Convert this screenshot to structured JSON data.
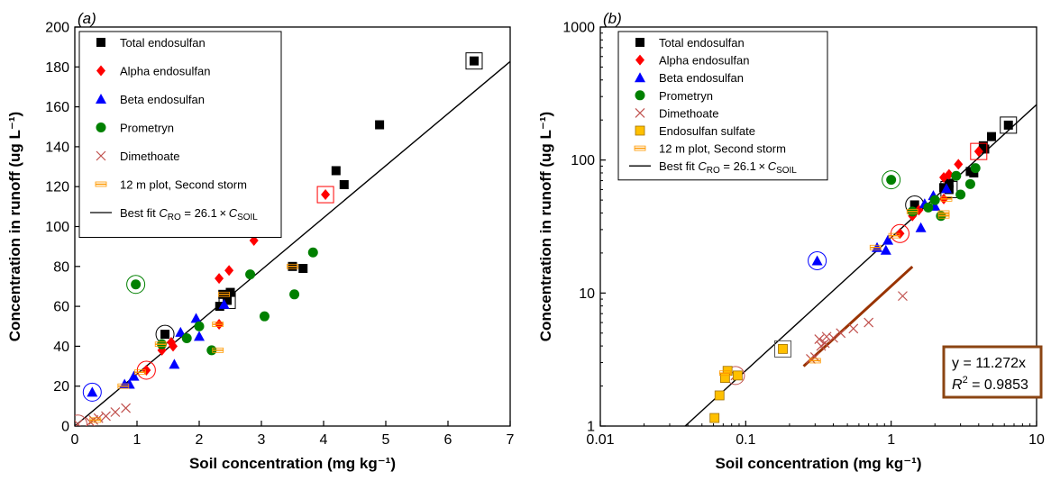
{
  "chart_data": [
    {
      "type": "scatter",
      "panel_label": "(a)",
      "xlabel": "Soil concentration (mg kg⁻¹)",
      "ylabel": "Concentration in runoff (ug L⁻¹)",
      "xlim": [
        0,
        7
      ],
      "ylim": [
        0,
        200
      ],
      "xscale": "linear",
      "yscale": "linear",
      "xticks": [
        0,
        1,
        2,
        3,
        4,
        5,
        6,
        7
      ],
      "yticks": [
        0,
        20,
        40,
        60,
        80,
        100,
        120,
        140,
        160,
        180,
        200
      ],
      "grid": false,
      "legend_position": "top-left",
      "legend": [
        {
          "label": "Total endosulfan",
          "marker": "square",
          "color": "#000000"
        },
        {
          "label": "Alpha endosulfan",
          "marker": "diamond",
          "color": "#ff0000"
        },
        {
          "label": "Beta endosulfan",
          "marker": "triangle",
          "color": "#0000ff"
        },
        {
          "label": "Prometryn",
          "marker": "circle",
          "color": "#008000"
        },
        {
          "label": "Dimethoate",
          "marker": "x",
          "color": "#c0504d"
        },
        {
          "label": "12 m plot, Second storm",
          "marker": "dash",
          "color": "#ff9900"
        },
        {
          "label": "Best fit",
          "label_math": "CRO = 26.1 × CSOIL",
          "marker": "line",
          "color": "#000000"
        }
      ],
      "fit_line": {
        "slope": 26.1
      },
      "series": [
        {
          "name": "Total endosulfan",
          "marker": "square",
          "color": "#000000",
          "points": [
            [
              6.42,
              183
            ],
            [
              4.9,
              151
            ],
            [
              4.2,
              128
            ],
            [
              4.33,
              121
            ],
            [
              3.5,
              80
            ],
            [
              3.67,
              79
            ],
            [
              2.5,
              67
            ],
            [
              2.38,
              66
            ],
            [
              2.33,
              60
            ],
            [
              2.45,
              63
            ],
            [
              1.45,
              46
            ]
          ],
          "boxed": [
            [
              6.42,
              183
            ],
            [
              2.45,
              63
            ]
          ],
          "ringed": [
            [
              1.45,
              46
            ]
          ]
        },
        {
          "name": "Alpha endosulfan",
          "marker": "diamond",
          "color": "#ff0000",
          "points": [
            [
              4.03,
              116
            ],
            [
              2.88,
              93
            ],
            [
              2.48,
              78
            ],
            [
              2.32,
              74
            ],
            [
              2.32,
              51
            ],
            [
              1.55,
              42
            ],
            [
              1.58,
              40
            ],
            [
              1.4,
              38
            ],
            [
              1.15,
              28
            ]
          ],
          "boxed": [
            [
              4.03,
              116
            ]
          ],
          "ringed": [
            [
              1.15,
              28
            ]
          ]
        },
        {
          "name": "Beta endosulfan",
          "marker": "triangle",
          "color": "#0000ff",
          "points": [
            [
              2.4,
              61
            ],
            [
              1.95,
              54
            ],
            [
              1.7,
              47
            ],
            [
              2.0,
              45
            ],
            [
              1.6,
              31
            ],
            [
              0.95,
              25
            ],
            [
              0.8,
              21
            ],
            [
              0.88,
              21
            ],
            [
              0.28,
              17
            ]
          ],
          "ringed": [
            [
              0.28,
              17
            ]
          ]
        },
        {
          "name": "Prometryn",
          "marker": "circle",
          "color": "#008000",
          "points": [
            [
              0.98,
              71
            ],
            [
              3.83,
              87
            ],
            [
              2.82,
              76
            ],
            [
              3.53,
              66
            ],
            [
              3.05,
              55
            ],
            [
              2.0,
              50
            ],
            [
              1.8,
              44
            ],
            [
              1.4,
              41
            ],
            [
              2.2,
              38
            ]
          ],
          "ringed": [
            [
              0.98,
              71
            ]
          ]
        },
        {
          "name": "Dimethoate",
          "marker": "x",
          "color": "#c0504d",
          "points": [
            [
              0.82,
              9
            ],
            [
              0.65,
              7
            ],
            [
              0.5,
              5
            ],
            [
              0.38,
              4
            ],
            [
              0.3,
              3
            ],
            [
              0.25,
              2
            ],
            [
              0.05,
              1
            ]
          ],
          "ringed": [
            [
              0.05,
              1
            ]
          ]
        },
        {
          "name": "12 m plot, Second storm",
          "marker": "dash",
          "color": "#ff9900",
          "points": [
            [
              1.38,
              41
            ],
            [
              2.3,
              38
            ],
            [
              1.05,
              27
            ],
            [
              0.78,
              20
            ],
            [
              2.3,
              51
            ],
            [
              0.33,
              3
            ],
            [
              2.4,
              66
            ],
            [
              3.5,
              80
            ]
          ]
        }
      ]
    },
    {
      "type": "scatter",
      "panel_label": "(b)",
      "xlabel": "Soil concentration (mg kg⁻¹)",
      "ylabel": "Concentration in runoff (ug L⁻¹)",
      "xlim": [
        0.01,
        10
      ],
      "ylim": [
        1,
        1000
      ],
      "xscale": "log",
      "yscale": "log",
      "xticks": [
        0.01,
        0.1,
        1,
        10
      ],
      "xticklabels": [
        "0.01",
        "0.1",
        "1",
        "10"
      ],
      "yticks": [
        1,
        10,
        100,
        1000
      ],
      "yticklabels": [
        "1",
        "10",
        "100",
        "1000"
      ],
      "grid": false,
      "legend_position": "top-left",
      "legend": [
        {
          "label": "Total endosulfan",
          "marker": "square",
          "color": "#000000"
        },
        {
          "label": "Alpha endosulfan",
          "marker": "diamond",
          "color": "#ff0000"
        },
        {
          "label": "Beta endosulfan",
          "marker": "triangle",
          "color": "#0000ff"
        },
        {
          "label": "Prometryn",
          "marker": "circle",
          "color": "#008000"
        },
        {
          "label": "Dimethoate",
          "marker": "x",
          "color": "#c0504d"
        },
        {
          "label": "Endosulfan sulfate",
          "marker": "square",
          "color": "#ffc000"
        },
        {
          "label": "12 m plot, Second storm",
          "marker": "dash",
          "color": "#ff9900"
        },
        {
          "label": "Best fit",
          "label_math": "CRO = 26.1 × CSOIL",
          "marker": "line",
          "color": "#000000"
        }
      ],
      "fit_line": {
        "slope": 26.1
      },
      "trend_line": {
        "slope": 11.272,
        "x_range": [
          0.25,
          1.4
        ],
        "color": "#993300"
      },
      "equation_box": {
        "line1": "y = 11.272x",
        "r2_label": "R",
        "r2_value": "= 0.9853",
        "border_color": "#8b4513"
      },
      "series": [
        {
          "name": "Total endosulfan",
          "marker": "square",
          "color": "#000000",
          "points": [
            [
              6.4,
              183
            ],
            [
              4.9,
              150
            ],
            [
              4.3,
              128
            ],
            [
              4.4,
              121
            ],
            [
              3.7,
              80
            ],
            [
              3.5,
              82
            ],
            [
              2.5,
              67
            ],
            [
              2.3,
              62
            ],
            [
              1.45,
              46
            ],
            [
              2.5,
              60
            ]
          ],
          "boxed": [
            [
              6.4,
              183
            ],
            [
              2.5,
              60
            ]
          ],
          "ringed": [
            [
              1.45,
              46
            ]
          ]
        },
        {
          "name": "Alpha endosulfan",
          "marker": "diamond",
          "color": "#ff0000",
          "points": [
            [
              4.0,
              116
            ],
            [
              2.9,
              93
            ],
            [
              2.5,
              78
            ],
            [
              2.3,
              74
            ],
            [
              2.3,
              51
            ],
            [
              1.55,
              42
            ],
            [
              1.4,
              38
            ],
            [
              1.15,
              28
            ]
          ],
          "boxed": [
            [
              4.0,
              116
            ]
          ],
          "ringed": [
            [
              1.15,
              28
            ]
          ]
        },
        {
          "name": "Beta endosulfan",
          "marker": "triangle",
          "color": "#0000ff",
          "points": [
            [
              2.4,
              61
            ],
            [
              1.95,
              54
            ],
            [
              1.7,
              47
            ],
            [
              2.0,
              45
            ],
            [
              1.6,
              31
            ],
            [
              0.95,
              25
            ],
            [
              0.8,
              22
            ],
            [
              0.92,
              21
            ],
            [
              0.31,
              17.5
            ]
          ],
          "ringed": [
            [
              0.31,
              17.5
            ]
          ]
        },
        {
          "name": "Prometryn",
          "marker": "circle",
          "color": "#008000",
          "points": [
            [
              1.0,
              71
            ],
            [
              3.8,
              87
            ],
            [
              2.8,
              76
            ],
            [
              3.5,
              66
            ],
            [
              3.0,
              55
            ],
            [
              2.0,
              50
            ],
            [
              1.8,
              44
            ],
            [
              1.4,
              41
            ],
            [
              2.2,
              38
            ]
          ],
          "ringed": [
            [
              1.0,
              71
            ]
          ]
        },
        {
          "name": "Dimethoate",
          "marker": "x",
          "color": "#c0504d",
          "points": [
            [
              1.2,
              9.5
            ],
            [
              0.7,
              6
            ],
            [
              0.55,
              5.4
            ],
            [
              0.45,
              5
            ],
            [
              0.4,
              4.6
            ],
            [
              0.36,
              4.7
            ],
            [
              0.35,
              4.2
            ],
            [
              0.33,
              4
            ],
            [
              0.32,
              4.5
            ],
            [
              0.3,
              3.3
            ],
            [
              0.28,
              3.2
            ],
            [
              0.085,
              2.4
            ]
          ],
          "ringed": [
            [
              0.085,
              2.4
            ]
          ]
        },
        {
          "name": "Endosulfan sulfate",
          "marker": "square",
          "color": "#ffc000",
          "points": [
            [
              0.18,
              3.8
            ],
            [
              0.075,
              2.6
            ],
            [
              0.072,
              2.3
            ],
            [
              0.088,
              2.4
            ],
            [
              0.066,
              1.7
            ],
            [
              0.061,
              1.15
            ]
          ],
          "boxed": [
            [
              0.18,
              3.8
            ]
          ]
        },
        {
          "name": "12 m plot, Second storm",
          "marker": "dash",
          "color": "#ff9900",
          "points": [
            [
              1.4,
              41
            ],
            [
              2.3,
              38
            ],
            [
              1.05,
              27
            ],
            [
              0.78,
              22
            ],
            [
              2.4,
              51
            ],
            [
              0.3,
              3.1
            ],
            [
              2.3,
              40
            ],
            [
              0.072,
              2.5
            ]
          ]
        }
      ]
    }
  ]
}
